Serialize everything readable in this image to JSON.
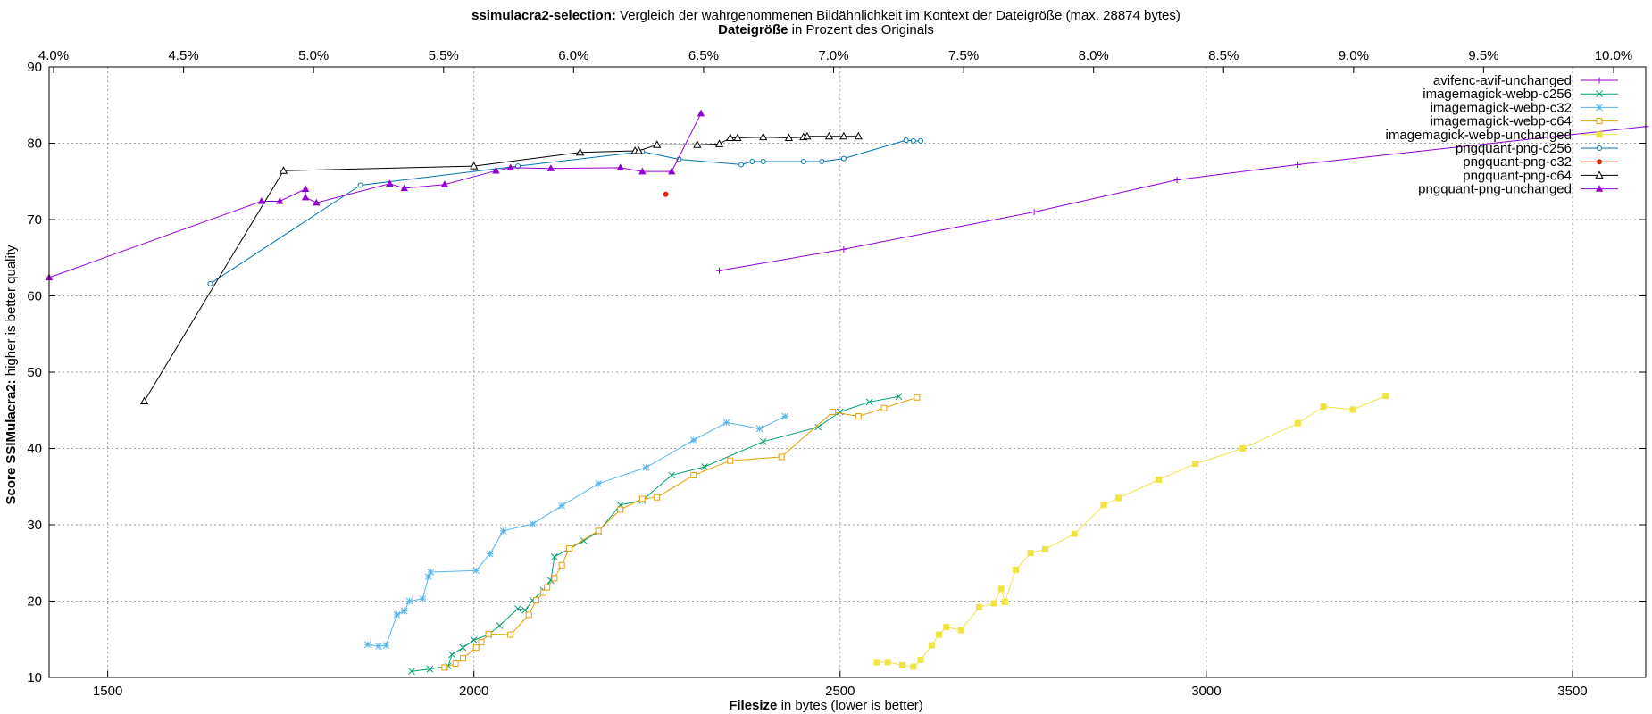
{
  "chart_data": {
    "type": "line",
    "title_bold": "ssimulacra2-selection:",
    "title_rest": " Vergleich der wahrgenommenen Bildähnlichkeit im Kontext der Dateigröße (max. 28874 bytes)",
    "top_axis_label_bold": "Dateigröße",
    "top_axis_label_rest": " in Prozent des Originals",
    "xlabel_bold": "Filesize",
    "xlabel_rest": " in bytes (lower is better)",
    "ylabel_bold": "Score SSIMulacra2:",
    "ylabel_rest": " higher is better quality",
    "xlim": [
      1420,
      3600
    ],
    "ylim": [
      10,
      90
    ],
    "x_ticks": [
      1500,
      2000,
      2500,
      3000,
      3500
    ],
    "y_ticks": [
      10,
      20,
      30,
      40,
      50,
      60,
      70,
      80,
      90
    ],
    "top_ticks": [
      "4.0%",
      "4.5%",
      "5.0%",
      "5.5%",
      "6.0%",
      "6.5%",
      "7.0%",
      "7.5%",
      "8.0%",
      "8.5%",
      "9.0%",
      "9.5%",
      "10.0%"
    ],
    "grid": true,
    "legend_position": "top-right",
    "series": [
      {
        "name": "avifenc-avif-unchanged",
        "color": "#9400d3",
        "marker": "plus",
        "points": [
          [
            2335,
            63.3
          ],
          [
            2505,
            66.1
          ],
          [
            2765,
            71.0
          ],
          [
            2960,
            75.2
          ],
          [
            3125,
            77.2
          ],
          [
            3600,
            82.2
          ]
        ]
      },
      {
        "name": "imagemagick-webp-c256",
        "color": "#009e73",
        "marker": "x",
        "points": [
          [
            1915,
            10.8
          ],
          [
            1940,
            11.1
          ],
          [
            1965,
            11.5
          ],
          [
            1970,
            13.0
          ],
          [
            1985,
            13.9
          ],
          [
            2000,
            14.9
          ],
          [
            2020,
            15.6
          ],
          [
            2035,
            16.8
          ],
          [
            2060,
            19.0
          ],
          [
            2070,
            18.8
          ],
          [
            2080,
            20.1
          ],
          [
            2095,
            21.4
          ],
          [
            2105,
            22.7
          ],
          [
            2110,
            25.8
          ],
          [
            2150,
            27.9
          ],
          [
            2170,
            29.1
          ],
          [
            2200,
            32.6
          ],
          [
            2230,
            33.2
          ],
          [
            2270,
            36.5
          ],
          [
            2315,
            37.6
          ],
          [
            2395,
            40.9
          ],
          [
            2470,
            42.8
          ],
          [
            2500,
            44.8
          ],
          [
            2540,
            46.1
          ],
          [
            2580,
            46.8
          ]
        ]
      },
      {
        "name": "imagemagick-webp-c32",
        "color": "#56b4e9",
        "marker": "star",
        "points": [
          [
            1855,
            14.3
          ],
          [
            1870,
            14.1
          ],
          [
            1880,
            14.2
          ],
          [
            1895,
            18.2
          ],
          [
            1905,
            18.7
          ],
          [
            1912,
            20.0
          ],
          [
            1930,
            20.3
          ],
          [
            1938,
            23.2
          ],
          [
            1941,
            23.8
          ],
          [
            2003,
            24.0
          ],
          [
            2022,
            26.2
          ],
          [
            2040,
            29.2
          ],
          [
            2080,
            30.1
          ],
          [
            2120,
            32.5
          ],
          [
            2170,
            35.4
          ],
          [
            2235,
            37.5
          ],
          [
            2300,
            41.1
          ],
          [
            2345,
            43.4
          ],
          [
            2390,
            42.6
          ],
          [
            2425,
            44.2
          ]
        ]
      },
      {
        "name": "imagemagick-webp-c64",
        "color": "#e69f00",
        "marker": "square",
        "points": [
          [
            1960,
            11.3
          ],
          [
            1975,
            11.8
          ],
          [
            1985,
            12.5
          ],
          [
            2003,
            13.9
          ],
          [
            2010,
            14.6
          ],
          [
            2020,
            15.7
          ],
          [
            2050,
            15.6
          ],
          [
            2075,
            18.2
          ],
          [
            2085,
            20.1
          ],
          [
            2095,
            21.1
          ],
          [
            2100,
            21.8
          ],
          [
            2110,
            23.0
          ],
          [
            2120,
            24.7
          ],
          [
            2130,
            26.9
          ],
          [
            2170,
            29.2
          ],
          [
            2200,
            32.0
          ],
          [
            2230,
            33.4
          ],
          [
            2250,
            33.6
          ],
          [
            2300,
            36.5
          ],
          [
            2350,
            38.4
          ],
          [
            2420,
            38.9
          ],
          [
            2490,
            44.8
          ],
          [
            2525,
            44.2
          ],
          [
            2560,
            45.3
          ],
          [
            2605,
            46.7
          ]
        ]
      },
      {
        "name": "imagemagick-webp-unchanged",
        "color": "#f0e442",
        "marker": "filled-square",
        "points": [
          [
            2550,
            12.0
          ],
          [
            2565,
            12.0
          ],
          [
            2585,
            11.6
          ],
          [
            2600,
            11.4
          ],
          [
            2610,
            12.3
          ],
          [
            2625,
            14.2
          ],
          [
            2635,
            15.6
          ],
          [
            2645,
            16.6
          ],
          [
            2665,
            16.2
          ],
          [
            2690,
            19.2
          ],
          [
            2710,
            19.7
          ],
          [
            2720,
            21.6
          ],
          [
            2725,
            19.9
          ],
          [
            2740,
            24.1
          ],
          [
            2760,
            26.3
          ],
          [
            2780,
            26.8
          ],
          [
            2820,
            28.8
          ],
          [
            2860,
            32.6
          ],
          [
            2880,
            33.5
          ],
          [
            2935,
            35.9
          ],
          [
            2985,
            38.0
          ],
          [
            3050,
            40.0
          ],
          [
            3125,
            43.3
          ],
          [
            3160,
            45.5
          ],
          [
            3200,
            45.1
          ],
          [
            3245,
            46.9
          ]
        ]
      },
      {
        "name": "pngquant-png-c256",
        "color": "#0072b2",
        "marker": "circle",
        "points": [
          [
            1640,
            61.6
          ],
          [
            1845,
            74.5
          ],
          [
            2060,
            77.0
          ],
          [
            2230,
            78.9
          ],
          [
            2280,
            77.9
          ],
          [
            2365,
            77.2
          ],
          [
            2380,
            77.6
          ],
          [
            2395,
            77.6
          ],
          [
            2450,
            77.6
          ],
          [
            2475,
            77.6
          ],
          [
            2505,
            78.0
          ],
          [
            2590,
            80.4
          ],
          [
            2600,
            80.3
          ],
          [
            2610,
            80.3
          ]
        ]
      },
      {
        "name": "pngquant-png-c32",
        "color": "#e51e10",
        "marker": "filled-circle",
        "points": [
          [
            2262,
            73.3
          ]
        ]
      },
      {
        "name": "pngquant-png-c64",
        "color": "#000000",
        "marker": "triangle",
        "points": [
          [
            1550,
            46.2
          ],
          [
            1740,
            76.4
          ],
          [
            2000,
            77.0
          ],
          [
            2145,
            78.8
          ],
          [
            2220,
            79.0
          ],
          [
            2225,
            79.0
          ],
          [
            2250,
            79.8
          ],
          [
            2305,
            79.8
          ],
          [
            2335,
            79.9
          ],
          [
            2350,
            80.7
          ],
          [
            2360,
            80.7
          ],
          [
            2395,
            80.8
          ],
          [
            2430,
            80.7
          ],
          [
            2450,
            80.8
          ],
          [
            2455,
            80.9
          ],
          [
            2485,
            80.9
          ],
          [
            2505,
            80.9
          ],
          [
            2525,
            80.9
          ]
        ]
      },
      {
        "name": "pngquant-png-unchanged",
        "color": "#9400d3",
        "marker": "filled-triangle",
        "points": [
          [
            1420,
            62.4
          ],
          [
            1710,
            72.4
          ],
          [
            1735,
            72.4
          ],
          [
            1770,
            74.0
          ],
          [
            1770,
            72.9
          ],
          [
            1785,
            72.2
          ],
          [
            1885,
            74.7
          ],
          [
            1905,
            74.1
          ],
          [
            1960,
            74.6
          ],
          [
            2030,
            76.4
          ],
          [
            2050,
            76.8
          ],
          [
            2105,
            76.7
          ],
          [
            2200,
            76.8
          ],
          [
            2230,
            76.3
          ],
          [
            2270,
            76.3
          ],
          [
            2310,
            83.9
          ]
        ]
      }
    ]
  }
}
